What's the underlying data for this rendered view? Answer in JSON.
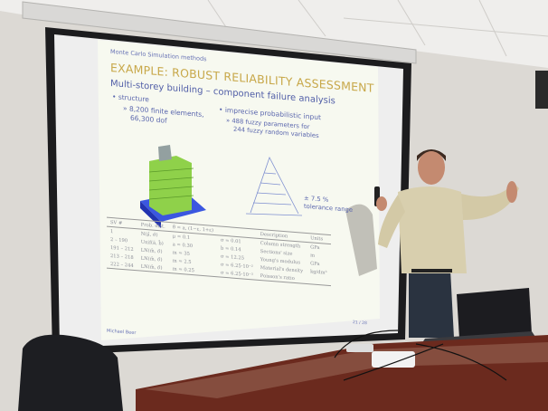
{
  "slide": {
    "section": "Monte Carlo Simulation methods",
    "title": "EXAMPLE: ROBUST RELIABILITY ASSESSMENT",
    "subtitle": "Multi-storey building – component failure analysis",
    "left_bullet": "structure",
    "left_sub": [
      "8,200 finite elements,",
      "66,300 dof"
    ],
    "right_bullet": "imprecise probabilistic input",
    "right_sub": [
      "488 fuzzy parameters for",
      "244 fuzzy random variables"
    ],
    "tolerance": [
      "± 7.5 %",
      "tolerance range"
    ],
    "table": {
      "headers": [
        "SV #",
        "Prob. dist.",
        "θ̃ = a, (1−ε, 1+ε)",
        "",
        "Description",
        "Units"
      ],
      "rows": [
        [
          "1",
          "N(μ̃, σ̃)",
          "μ = 0.1",
          "σ = 0.01",
          "Column strength",
          "GPa"
        ],
        [
          "2 – 190",
          "Unif(ã, b̃)",
          "a = 0.30",
          "b = 0.14",
          "Sections' size",
          "m"
        ],
        [
          "191 – 212",
          "LN(m̃, σ̃)",
          "m = 35",
          "σ = 12.25",
          "Young's modulus",
          "GPa"
        ],
        [
          "213 – 218",
          "LN(m̃, σ̃)",
          "m = 2.5",
          "σ = 6.25·10⁻²",
          "Material's density",
          "kg/dm³"
        ],
        [
          "222 – 244",
          "LN(m̃, σ̃)",
          "m = 0.25",
          "σ = 6.25·10⁻³",
          "Poisson's ratio",
          ""
        ]
      ]
    },
    "author": "Michael Beer",
    "page": "21 / 28"
  },
  "colors": {
    "wall": "#dcd9d4",
    "screen_border": "#1c1c1e",
    "slide_title": "#c8a84a",
    "slide_text": "#5360a8",
    "shirt": "#d8cfae",
    "desk": "#6b2a1e"
  }
}
